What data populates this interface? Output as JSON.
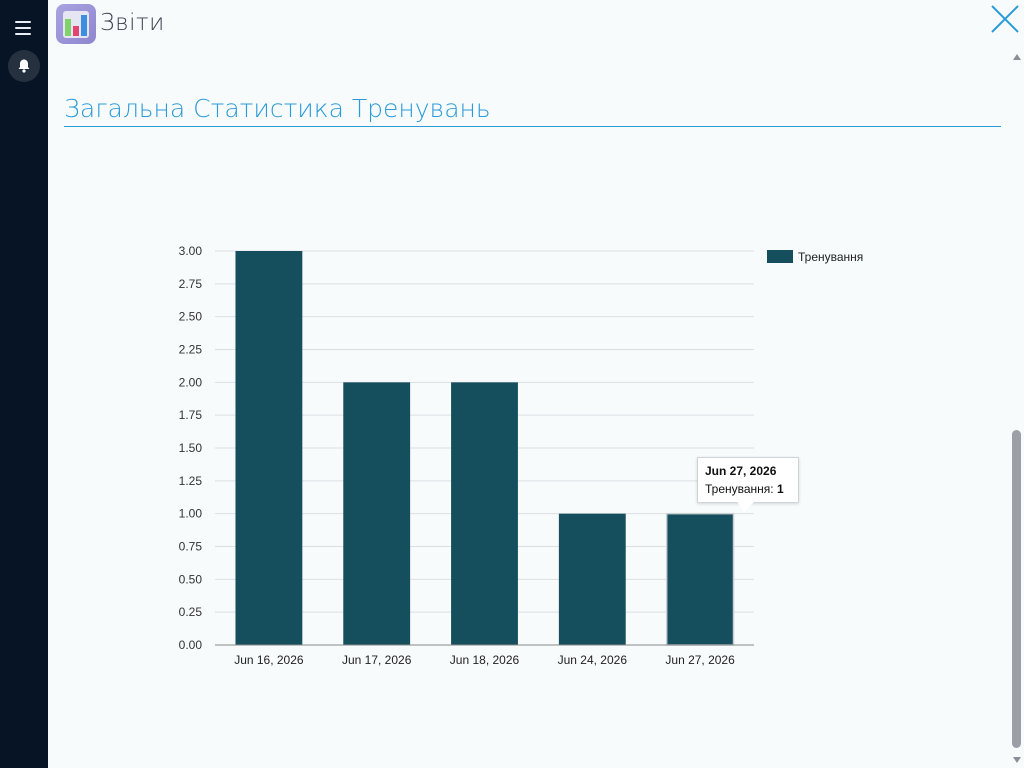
{
  "header": {
    "app_title": "Звіти",
    "icons": {
      "menu": "hamburger-menu-icon",
      "bell": "bell-icon",
      "app": "reports-app-icon",
      "close": "close-icon"
    }
  },
  "page": {
    "heading": "Загальна Статистика Тренувань"
  },
  "chart_data": {
    "type": "bar",
    "categories": [
      "Jun 16, 2026",
      "Jun 17, 2026",
      "Jun 18, 2026",
      "Jun 24, 2026",
      "Jun 27, 2026"
    ],
    "series": [
      {
        "name": "Тренування",
        "values": [
          3,
          2,
          2,
          1,
          1
        ],
        "color": "#154f5d"
      }
    ],
    "ylim": [
      0,
      3
    ],
    "yticks": [
      "0.00",
      "0.25",
      "0.50",
      "0.75",
      "1.00",
      "1.25",
      "1.50",
      "1.75",
      "2.00",
      "2.25",
      "2.50",
      "2.75",
      "3.00"
    ],
    "grid": true,
    "legend": "top-right",
    "tooltip": {
      "title": "Jun 27, 2026",
      "label": "Тренування: ",
      "value": "1"
    }
  },
  "colors": {
    "sidebar": "#061425",
    "accent": "#2b9bd8",
    "bar": "#154f5d",
    "background": "#f7fbfc"
  }
}
